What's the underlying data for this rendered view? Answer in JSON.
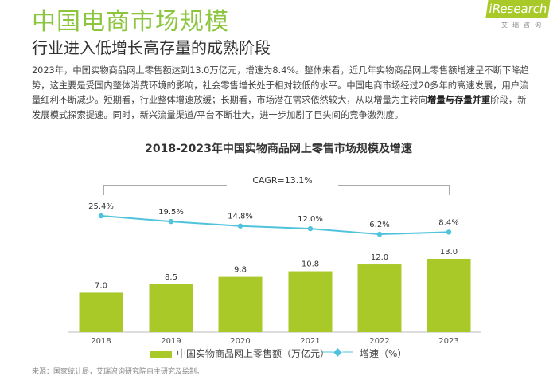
{
  "header": {
    "title": "中国电商市场规模",
    "subtitle": "行业进入低增长高存量的成熟阶段",
    "logo": "iResearch",
    "logo_sub": "艾瑞咨询"
  },
  "paragraph": {
    "part1": "2023年，中国实物商品网上零售额达到13.0万亿元，增速为8.4%。整体来看，近几年实物商品网上零售额增速呈不断下降趋势，这主要是受国内整体消费环境的影响，社会零售增长处于相对较低的水平。中国电商市场经过20多年的高速发展，用户流量红利不断减少。短期看，行业整体增速放缓；长期看，市场潜在需求依然较大，从以增量为主转向",
    "bold": "增量与存量并重",
    "part2": "阶段，新发展模式探索提速。同时，新兴流量渠道/平台不断壮大，进一步加剧了巨头间的竞争激烈度。"
  },
  "chart_data": {
    "type": "bar+line",
    "title": "2018-2023年中国实物商品网上零售市场规模及增速",
    "annotation": "CAGR=13.1%",
    "categories": [
      "2018",
      "2019",
      "2020",
      "2021",
      "2022",
      "2023"
    ],
    "series": [
      {
        "name": "中国实物商品网上零售额（万亿元）",
        "type": "bar",
        "values": [
          7.0,
          8.5,
          9.8,
          10.8,
          12.0,
          13.0
        ],
        "labels": [
          "7.0",
          "8.5",
          "9.8",
          "10.8",
          "12.0",
          "13.0"
        ],
        "color": "#a8c928"
      },
      {
        "name": "增速（%）",
        "type": "line",
        "values": [
          25.4,
          19.5,
          14.8,
          12.0,
          6.2,
          8.4
        ],
        "labels": [
          "25.4%",
          "19.5%",
          "14.8%",
          "12.0%",
          "6.2%",
          "8.4%"
        ],
        "color": "#4fc3dc"
      }
    ],
    "legend": "bottom"
  },
  "source": "来源：国家统计局，艾瑞咨询研究院自主研究及绘制。"
}
